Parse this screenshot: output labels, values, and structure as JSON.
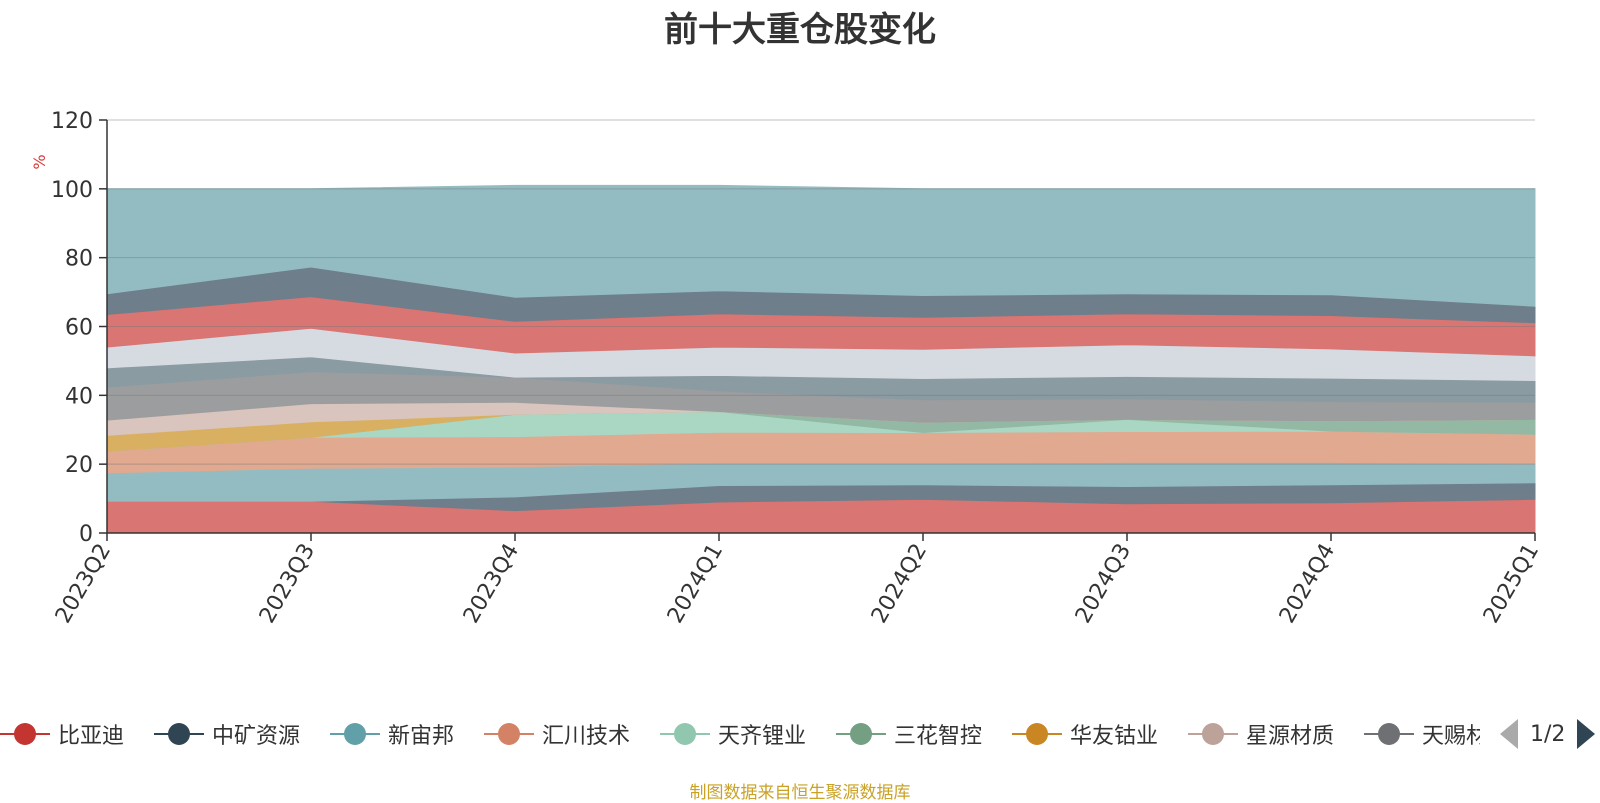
{
  "chart_data": {
    "type": "area",
    "title": "前十大重仓股变化",
    "ylabel": "%",
    "ylim": [
      0,
      120
    ],
    "yticks": [
      0,
      20,
      40,
      60,
      80,
      100,
      120
    ],
    "categories": [
      "2023Q2",
      "2023Q3",
      "2023Q4",
      "2024Q1",
      "2024Q2",
      "2024Q3",
      "2024Q4",
      "2025Q1"
    ],
    "stacked": true,
    "series": [
      {
        "name": "比亚迪",
        "color": "#d97572",
        "values": [
          9.2,
          9.2,
          6.5,
          9.0,
          9.8,
          8.5,
          8.8,
          9.8
        ]
      },
      {
        "name": "中矿资源",
        "color": "#6e7e8a",
        "values": [
          0.0,
          0.0,
          4.0,
          4.8,
          4.2,
          5.0,
          5.2,
          4.8
        ]
      },
      {
        "name": "新宙邦",
        "color": "#93bcc2",
        "values": [
          8.3,
          9.6,
          8.7,
          6.5,
          6.3,
          7.0,
          6.5,
          5.5
        ]
      },
      {
        "name": "汇川技术",
        "color": "#e0a990",
        "values": [
          6.3,
          9.0,
          8.8,
          9.0,
          8.9,
          9.0,
          9.1,
          8.6
        ]
      },
      {
        "name": "天齐锂业",
        "color": "#a9d7c4",
        "values": [
          0.0,
          0.0,
          6.5,
          6.0,
          0.0,
          3.5,
          0.0,
          0.0
        ]
      },
      {
        "name": "三花智控",
        "color": "#93b8a4",
        "values": [
          0.0,
          0.0,
          0.0,
          0.0,
          3.0,
          0.0,
          3.0,
          4.3
        ]
      },
      {
        "name": "华友钴业",
        "color": "#d9b062",
        "values": [
          4.6,
          4.5,
          0.0,
          0.0,
          0.0,
          0.0,
          0.0,
          0.0
        ]
      },
      {
        "name": "星源材质",
        "color": "#d9c4be",
        "values": [
          4.4,
          5.3,
          3.5,
          0.0,
          0.0,
          0.0,
          0.0,
          0.0
        ]
      },
      {
        "name": "天赐材料",
        "color": "#9c9d9f",
        "values": [
          9.6,
          9.3,
          7.3,
          6.0,
          6.5,
          6.0,
          5.6,
          5.0
        ]
      },
      {
        "name": "",
        "color": "#8a9ba2",
        "values": [
          5.6,
          4.3,
          0.0,
          4.5,
          6.2,
          6.5,
          6.8,
          6.3
        ]
      },
      {
        "name": "",
        "color": "#d6dbe2",
        "values": [
          6.0,
          8.3,
          7.0,
          8.2,
          8.5,
          9.2,
          8.5,
          7.2
        ]
      },
      {
        "name": "",
        "color": "#d97572",
        "values": [
          9.5,
          9.2,
          9.2,
          9.7,
          9.3,
          9.0,
          9.7,
          9.6
        ]
      },
      {
        "name": "",
        "color": "#6e7e8a",
        "values": [
          6.0,
          8.6,
          7.0,
          6.7,
          6.3,
          5.8,
          6.0,
          4.8
        ]
      },
      {
        "name": "",
        "color": "#93bcc2",
        "values": [
          30.5,
          22.7,
          32.5,
          30.6,
          31.0,
          30.5,
          30.8,
          34.1
        ]
      }
    ],
    "grid": true,
    "legend_position": "bottom"
  },
  "legend": {
    "items": [
      {
        "label": "比亚迪",
        "color": "#c23531"
      },
      {
        "label": "中矿资源",
        "color": "#2f4554"
      },
      {
        "label": "新宙邦",
        "color": "#61a0a8"
      },
      {
        "label": "汇川技术",
        "color": "#d48265"
      },
      {
        "label": "天齐锂业",
        "color": "#91c7ae"
      },
      {
        "label": "三花智控",
        "color": "#749f83"
      },
      {
        "label": "华友钴业",
        "color": "#ca8622"
      },
      {
        "label": "星源材质",
        "color": "#bda29a"
      },
      {
        "label": "天赐材料",
        "color": "#6e7074"
      }
    ],
    "page": "1/2"
  },
  "footer": {
    "source": "制图数据来自恒生聚源数据库"
  }
}
